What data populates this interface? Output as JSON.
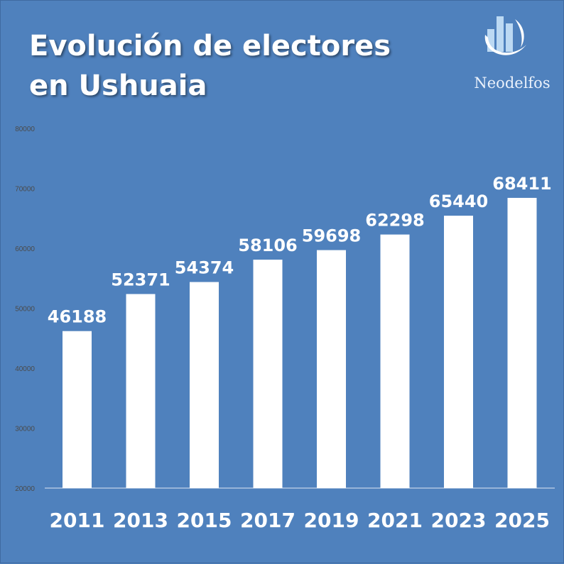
{
  "title": {
    "line1": "Evolución de electores",
    "line2": "en Ushuaia"
  },
  "logo": {
    "name": "Neodelfos",
    "icon": "bar-chart-swoosh-icon"
  },
  "colors": {
    "background": "#4f81bd",
    "bars": "#ffffff",
    "text": "#ffffff",
    "tick_text": "#4a4a4a"
  },
  "chart_data": {
    "type": "bar",
    "title": "Evolución de electores en Ushuaia",
    "categories": [
      "2011",
      "2013",
      "2015",
      "2017",
      "2019",
      "2021",
      "2023",
      "2025"
    ],
    "values": [
      46188,
      52371,
      54374,
      58106,
      59698,
      62298,
      65440,
      68411
    ],
    "data_labels": [
      "46188",
      "52371",
      "54374",
      "58106",
      "59698",
      "62298",
      "65440",
      "68411"
    ],
    "xlabel": "",
    "ylabel": "",
    "ylim": [
      20000,
      80000
    ],
    "yticks": [
      20000,
      30000,
      40000,
      50000,
      60000,
      70000,
      80000
    ],
    "ytick_labels": [
      "20000",
      "30000",
      "40000",
      "50000",
      "60000",
      "70000",
      "80000"
    ],
    "grid": false,
    "legend": "none"
  }
}
